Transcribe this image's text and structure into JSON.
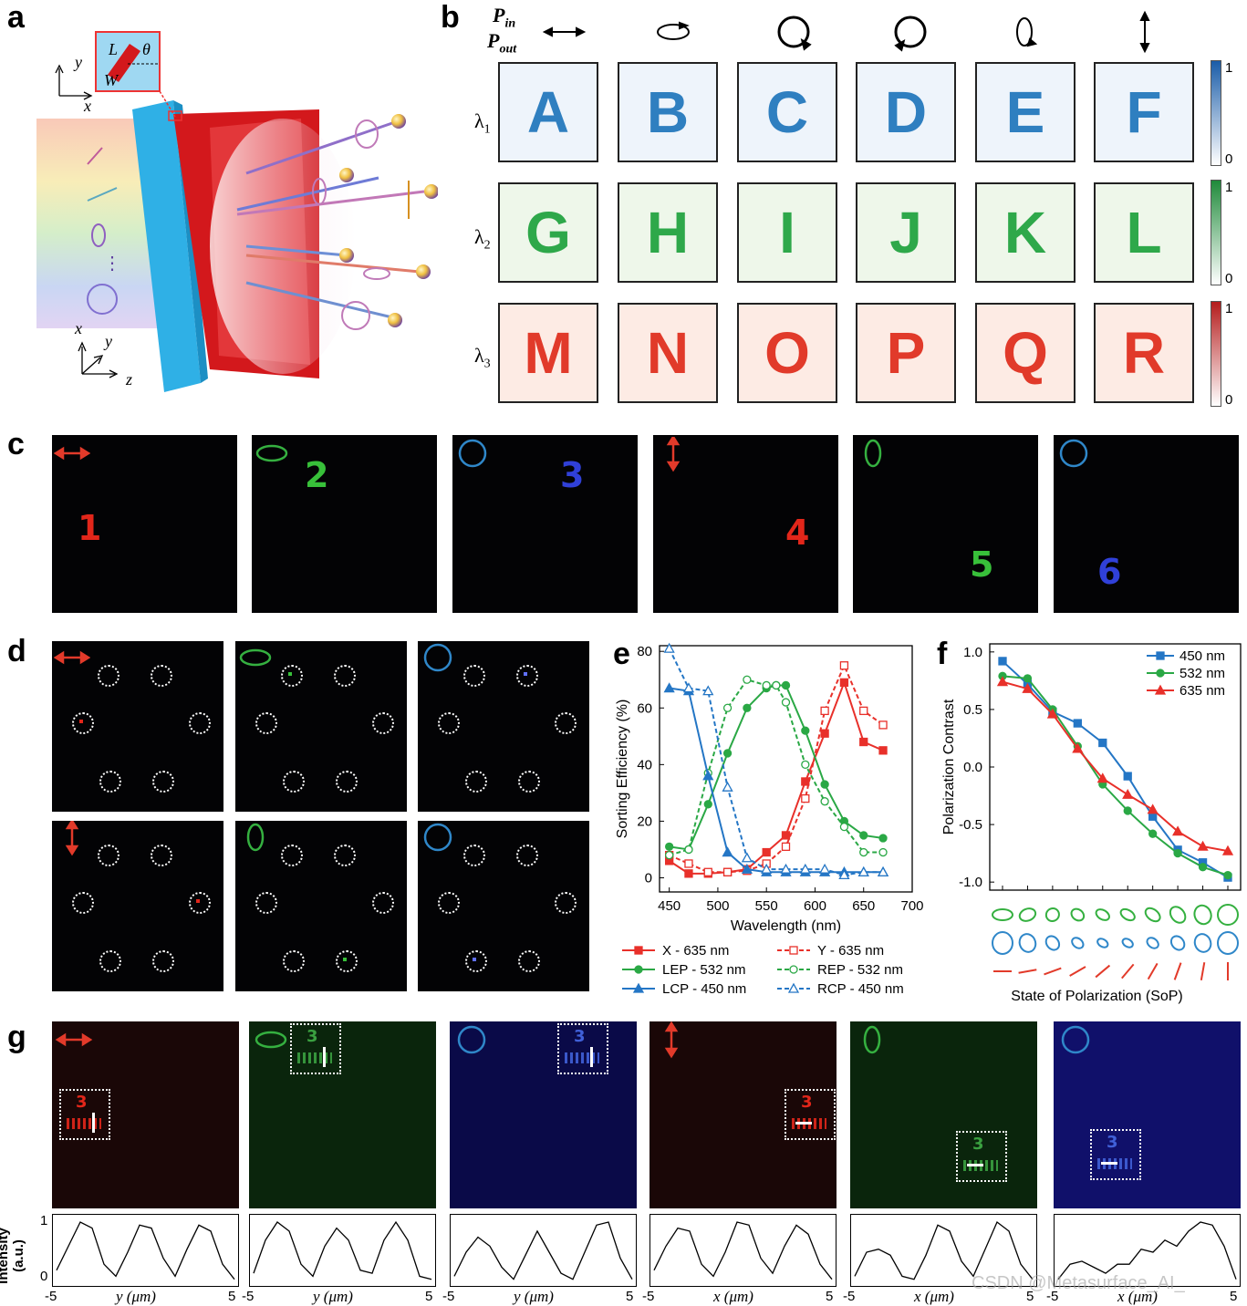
{
  "panel_labels": [
    "a",
    "b",
    "c",
    "d",
    "e",
    "f",
    "g"
  ],
  "panel_a": {
    "inset_labels": {
      "L": "L",
      "theta": "θ",
      "W": "W"
    },
    "axes_top": {
      "y": "y",
      "x": "x"
    },
    "axes_bottom": {
      "x": "x",
      "y": "y",
      "z": "z"
    },
    "ellipsis": "⋮"
  },
  "panel_b": {
    "header_p_in": "P",
    "header_p_in_sub": "in",
    "header_p_out": "P",
    "header_p_out_sub": "out",
    "row_labels": [
      {
        "main": "λ",
        "sub": "1"
      },
      {
        "main": "λ",
        "sub": "2"
      },
      {
        "main": "λ",
        "sub": "3"
      }
    ],
    "letters": [
      [
        "A",
        "B",
        "C",
        "D",
        "E",
        "F"
      ],
      [
        "G",
        "H",
        "I",
        "J",
        "K",
        "L"
      ],
      [
        "M",
        "N",
        "O",
        "P",
        "Q",
        "R"
      ]
    ],
    "colorbar_top": "1",
    "colorbar_bottom": "0",
    "colors": {
      "blue": "#2f7fc0",
      "green": "#2ea84a",
      "red": "#e13a2a",
      "bg_blue": "#eef4fb",
      "bg_green": "#eef7ea",
      "bg_red": "#fdebe4"
    }
  },
  "panel_c": {
    "digits": [
      "1",
      "2",
      "3",
      "4",
      "5",
      "6"
    ]
  },
  "panel_e": {
    "chart_data": {
      "type": "line",
      "xlabel": "Wavelength (nm)",
      "ylabel": "Sorting Efficiency (%)",
      "xlim": [
        440,
        700
      ],
      "ylim": [
        -5,
        82
      ],
      "xticks": [
        450,
        500,
        550,
        600,
        650,
        700
      ],
      "yticks": [
        0,
        20,
        40,
        60,
        80
      ],
      "series": [
        {
          "name": "X - 635 nm",
          "color": "#e8302a",
          "dash": false,
          "marker": "square-filled",
          "x": [
            450,
            470,
            490,
            510,
            530,
            550,
            570,
            590,
            610,
            630,
            650,
            670
          ],
          "y": [
            6,
            1.5,
            1.5,
            2,
            3,
            9,
            15,
            34,
            51,
            69,
            48,
            45
          ]
        },
        {
          "name": "Y - 635 nm",
          "color": "#e8302a",
          "dash": true,
          "marker": "square-open",
          "x": [
            450,
            470,
            490,
            510,
            530,
            550,
            570,
            590,
            610,
            630,
            650,
            670
          ],
          "y": [
            8,
            5,
            2,
            2,
            2.5,
            5,
            11,
            28,
            59,
            75,
            59,
            54
          ]
        },
        {
          "name": "LEP - 532 nm",
          "color": "#2aa845",
          "dash": false,
          "marker": "circle-filled",
          "x": [
            450,
            470,
            490,
            510,
            530,
            550,
            560,
            570,
            590,
            610,
            630,
            650,
            670
          ],
          "y": [
            11,
            10,
            26,
            44,
            60,
            67,
            68,
            68,
            52,
            33,
            20,
            15,
            14
          ]
        },
        {
          "name": "REP - 532 nm",
          "color": "#2aa845",
          "dash": true,
          "marker": "circle-open",
          "x": [
            450,
            470,
            490,
            510,
            530,
            550,
            560,
            570,
            590,
            610,
            630,
            650,
            670
          ],
          "y": [
            8,
            10,
            37,
            60,
            70,
            68,
            68,
            62,
            40,
            27,
            18,
            9,
            9
          ]
        },
        {
          "name": "LCP - 450 nm",
          "color": "#2476c5",
          "dash": false,
          "marker": "triangle-filled",
          "x": [
            450,
            470,
            490,
            510,
            530,
            550,
            570,
            590,
            610,
            630,
            650,
            670
          ],
          "y": [
            67,
            66,
            36,
            9,
            3,
            2,
            2,
            2,
            2,
            2,
            2,
            2
          ]
        },
        {
          "name": "RCP - 450 nm",
          "color": "#2476c5",
          "dash": true,
          "marker": "triangle-open",
          "x": [
            450,
            470,
            490,
            510,
            530,
            550,
            570,
            590,
            610,
            630,
            650,
            670
          ],
          "y": [
            81,
            67,
            66,
            32,
            7,
            3,
            3,
            3,
            3,
            1,
            2,
            2
          ]
        }
      ]
    }
  },
  "panel_f": {
    "chart_data": {
      "type": "line",
      "xlabel": "State of Polarization (SoP)",
      "ylabel": "Polarization Contrast",
      "ylim": [
        -1.07,
        1.07
      ],
      "yticks": [
        1.0,
        0.5,
        0.0,
        -0.5,
        -1.0
      ],
      "ytick_labels": [
        "1.0",
        "0.5",
        "0.0",
        "-0.5",
        "-1.0"
      ],
      "points": 10,
      "series": [
        {
          "name": "450 nm",
          "color": "#2476c5",
          "marker": "square",
          "y": [
            0.92,
            0.72,
            0.48,
            0.38,
            0.21,
            -0.08,
            -0.43,
            -0.72,
            -0.83,
            -0.96
          ]
        },
        {
          "name": "532 nm",
          "color": "#2aa845",
          "marker": "circle",
          "y": [
            0.79,
            0.77,
            0.5,
            0.18,
            -0.15,
            -0.38,
            -0.58,
            -0.75,
            -0.87,
            -0.94
          ]
        },
        {
          "name": "635 nm",
          "color": "#e8302a",
          "marker": "triangle",
          "y": [
            0.74,
            0.68,
            0.46,
            0.16,
            -0.1,
            -0.24,
            -0.37,
            -0.56,
            -0.69,
            -0.73
          ]
        }
      ]
    }
  },
  "panel_g": {
    "ylabel": "Intensity (a.u.)",
    "ytick_top": "1",
    "ytick_bottom": "0",
    "xtick_left": "-5",
    "xtick_right": "5",
    "xlabels": [
      "y (μm)",
      "y (μm)",
      "y (μm)",
      "x (μm)",
      "x (μm)",
      "x (μm)"
    ],
    "target_digit": "3"
  },
  "watermark": "CSDN @Metasurface_AI_"
}
